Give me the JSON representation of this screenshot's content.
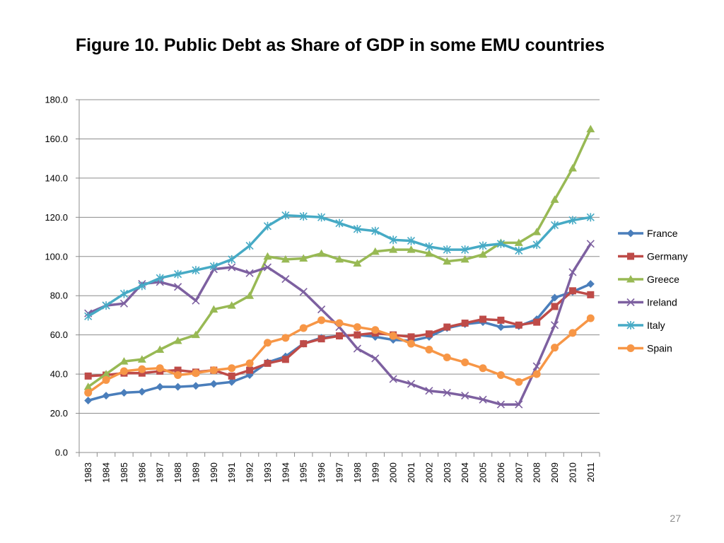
{
  "slide": {
    "title": "Figure 10. Public Debt as Share of GDP in some EMU countries",
    "page_number": "27"
  },
  "chart_data": {
    "type": "line",
    "title": "Figure 10. Public Debt as Share of GDP in some EMU countries",
    "xlabel": "",
    "ylabel": "",
    "ylim": [
      0,
      180
    ],
    "y_ticks": [
      "0.0",
      "20.0",
      "40.0",
      "60.0",
      "80.0",
      "100.0",
      "120.0",
      "140.0",
      "160.0",
      "180.0"
    ],
    "grid": true,
    "legend_position": "right",
    "x": [
      "1983",
      "1984",
      "1985",
      "1986",
      "1987",
      "1988",
      "1989",
      "1990",
      "1991",
      "1992",
      "1993",
      "1994",
      "1995",
      "1996",
      "1997",
      "1998",
      "1999",
      "2000",
      "2001",
      "2002",
      "2003",
      "2004",
      "2005",
      "2006",
      "2007",
      "2008",
      "2009",
      "2010",
      "2011"
    ],
    "series": [
      {
        "name": "France",
        "color": "#4a7ebb",
        "marker": "diamond",
        "values": [
          26.5,
          29,
          30.5,
          31,
          33.5,
          33.5,
          34,
          35,
          36,
          39.5,
          46,
          49,
          55.5,
          58.5,
          59.5,
          60,
          59,
          57.5,
          57,
          59,
          63.5,
          65.5,
          66.5,
          64,
          64.5,
          68,
          79,
          82,
          86
        ]
      },
      {
        "name": "Germany",
        "color": "#be4b48",
        "marker": "square",
        "values": [
          39,
          39.5,
          40.5,
          40.5,
          41.5,
          42,
          41,
          42,
          39,
          42,
          45.5,
          47.5,
          55.5,
          58,
          59.5,
          60,
          61,
          60,
          59,
          60.5,
          64,
          66,
          68,
          67.5,
          65,
          66.5,
          74.5,
          82.5,
          80.5
        ]
      },
      {
        "name": "Greece",
        "color": "#98b954",
        "marker": "triangle",
        "values": [
          33.5,
          40,
          46.5,
          47.5,
          52.5,
          57,
          60,
          73,
          75,
          80,
          100,
          98.5,
          99,
          101.5,
          98.5,
          96.5,
          102.5,
          103.5,
          103.5,
          101.5,
          97.5,
          98.5,
          101,
          107,
          107,
          112.5,
          129,
          145,
          165
        ]
      },
      {
        "name": "Ireland",
        "color": "#7d60a0",
        "marker": "x",
        "values": [
          71,
          75,
          76,
          86,
          87,
          84.5,
          77.5,
          93.5,
          94.5,
          91.5,
          94.5,
          88.5,
          82,
          73,
          64,
          53,
          48,
          37.5,
          35,
          31.5,
          30.5,
          29,
          27,
          24.5,
          24.5,
          44,
          65,
          92,
          106.5
        ]
      },
      {
        "name": "Italy",
        "color": "#46aac5",
        "marker": "asterisk",
        "values": [
          69.5,
          75,
          81,
          85,
          89,
          91,
          93,
          95,
          98.5,
          105.5,
          115.5,
          121,
          120.5,
          120,
          117,
          114,
          113,
          108.5,
          108,
          105,
          103.5,
          103.5,
          105.5,
          106.5,
          103,
          106,
          116,
          118.5,
          120
        ]
      },
      {
        "name": "Spain",
        "color": "#f79646",
        "marker": "circle",
        "values": [
          30.5,
          37,
          41.5,
          42.5,
          43,
          39.5,
          40.5,
          42,
          43,
          45.5,
          56,
          58.5,
          63.5,
          67.5,
          66,
          64,
          62.5,
          59.5,
          55.5,
          52.5,
          48.5,
          46,
          43,
          39.5,
          36,
          40,
          53.5,
          61,
          68.5
        ]
      }
    ]
  }
}
